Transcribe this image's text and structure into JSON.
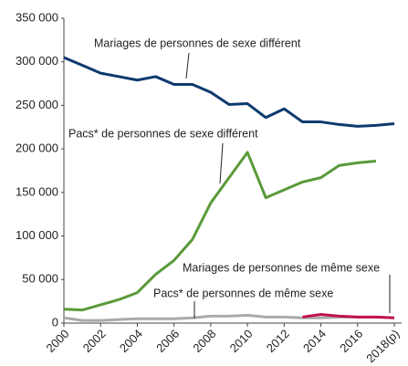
{
  "chart_data": {
    "type": "line",
    "x": [
      2000,
      2001,
      2002,
      2003,
      2004,
      2005,
      2006,
      2007,
      2008,
      2009,
      2010,
      2011,
      2012,
      2013,
      2014,
      2015,
      2016,
      2017,
      2018
    ],
    "xlim": [
      2000,
      2018
    ],
    "xticks": [
      2000,
      2002,
      2004,
      2006,
      2008,
      2010,
      2012,
      2014,
      2016,
      {
        "value": 2018,
        "label": "2018(p)"
      }
    ],
    "ylim": [
      0,
      350000
    ],
    "yticks": [
      0,
      {
        "value": 50000,
        "label": "50 000"
      },
      {
        "value": 100000,
        "label": "100 000"
      },
      {
        "value": 150000,
        "label": "150 000"
      },
      {
        "value": 200000,
        "label": "200 000"
      },
      {
        "value": 250000,
        "label": "250 000"
      },
      {
        "value": 300000,
        "label": "300 000"
      },
      {
        "value": 350000,
        "label": "350 000"
      }
    ],
    "grid": false,
    "series": [
      {
        "name": "Mariages de personnes de sexe différent",
        "color": "#0d3a6e",
        "values": [
          305000,
          296000,
          287000,
          283000,
          279000,
          283000,
          274000,
          274000,
          265000,
          251000,
          252000,
          236000,
          246000,
          231000,
          231000,
          228000,
          226000,
          227000,
          229000
        ]
      },
      {
        "name": "Pacs* de personnes de sexe différent",
        "color": "#5a9a3a",
        "values": [
          16000,
          15000,
          21000,
          27000,
          35000,
          56000,
          72000,
          96000,
          138000,
          167000,
          196000,
          144000,
          153000,
          162000,
          167000,
          181000,
          184000,
          186000,
          null
        ]
      },
      {
        "name": "Mariages de personnes de même sexe",
        "color": "#c0134a",
        "values": [
          null,
          null,
          null,
          null,
          null,
          null,
          null,
          null,
          null,
          null,
          null,
          null,
          null,
          7000,
          10000,
          8000,
          7000,
          7000,
          6000
        ]
      },
      {
        "name": "Pacs* de personnes de même sexe",
        "color": "#aaaaaa",
        "values": [
          6000,
          3000,
          3000,
          4000,
          5000,
          5000,
          5000,
          6000,
          8000,
          8000,
          9000,
          7000,
          7000,
          6000,
          6000,
          7000,
          7000,
          7000,
          null
        ]
      }
    ]
  }
}
